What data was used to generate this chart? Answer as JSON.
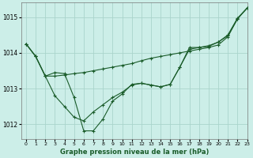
{
  "title": "Graphe pression niveau de la mer (hPa)",
  "background_color": "#cceee8",
  "grid_color": "#aad4cc",
  "line_color": "#1a5c2a",
  "ylim": [
    1011.6,
    1015.4
  ],
  "xlim": [
    -0.5,
    23
  ],
  "yticks": [
    1012,
    1013,
    1014,
    1015
  ],
  "xtick_labels": [
    "0",
    "1",
    "2",
    "3",
    "4",
    "5",
    "6",
    "7",
    "8",
    "9",
    "10",
    "11",
    "12",
    "13",
    "14",
    "15",
    "16",
    "17",
    "18",
    "19",
    "20",
    "21",
    "22",
    "23"
  ],
  "s1": [
    1014.25,
    1013.9,
    1013.35,
    1013.35,
    1013.38,
    1013.42,
    1013.45,
    1013.5,
    1013.55,
    1013.6,
    1013.65,
    1013.7,
    1013.78,
    1013.85,
    1013.9,
    1013.95,
    1014.0,
    1014.05,
    1014.1,
    1014.15,
    1014.22,
    1014.45,
    1014.95,
    1015.25
  ],
  "s2": [
    1014.25,
    1013.9,
    1013.35,
    1012.8,
    1012.5,
    1012.2,
    1012.1,
    1012.35,
    1012.55,
    1012.75,
    1012.9,
    1013.1,
    1013.15,
    1013.1,
    1013.05,
    1013.12,
    1013.6,
    1014.1,
    1014.15,
    1014.18,
    1014.3,
    1014.48,
    1014.95,
    1015.25
  ],
  "s3": [
    1014.25,
    1013.9,
    1013.35,
    1013.45,
    1013.42,
    1012.75,
    1011.82,
    1011.82,
    1012.15,
    1012.65,
    1012.85,
    1013.12,
    1013.15,
    1013.1,
    1013.05,
    1013.12,
    1013.6,
    1014.15,
    1014.15,
    1014.2,
    1014.3,
    1014.5,
    1014.97,
    1015.25
  ]
}
